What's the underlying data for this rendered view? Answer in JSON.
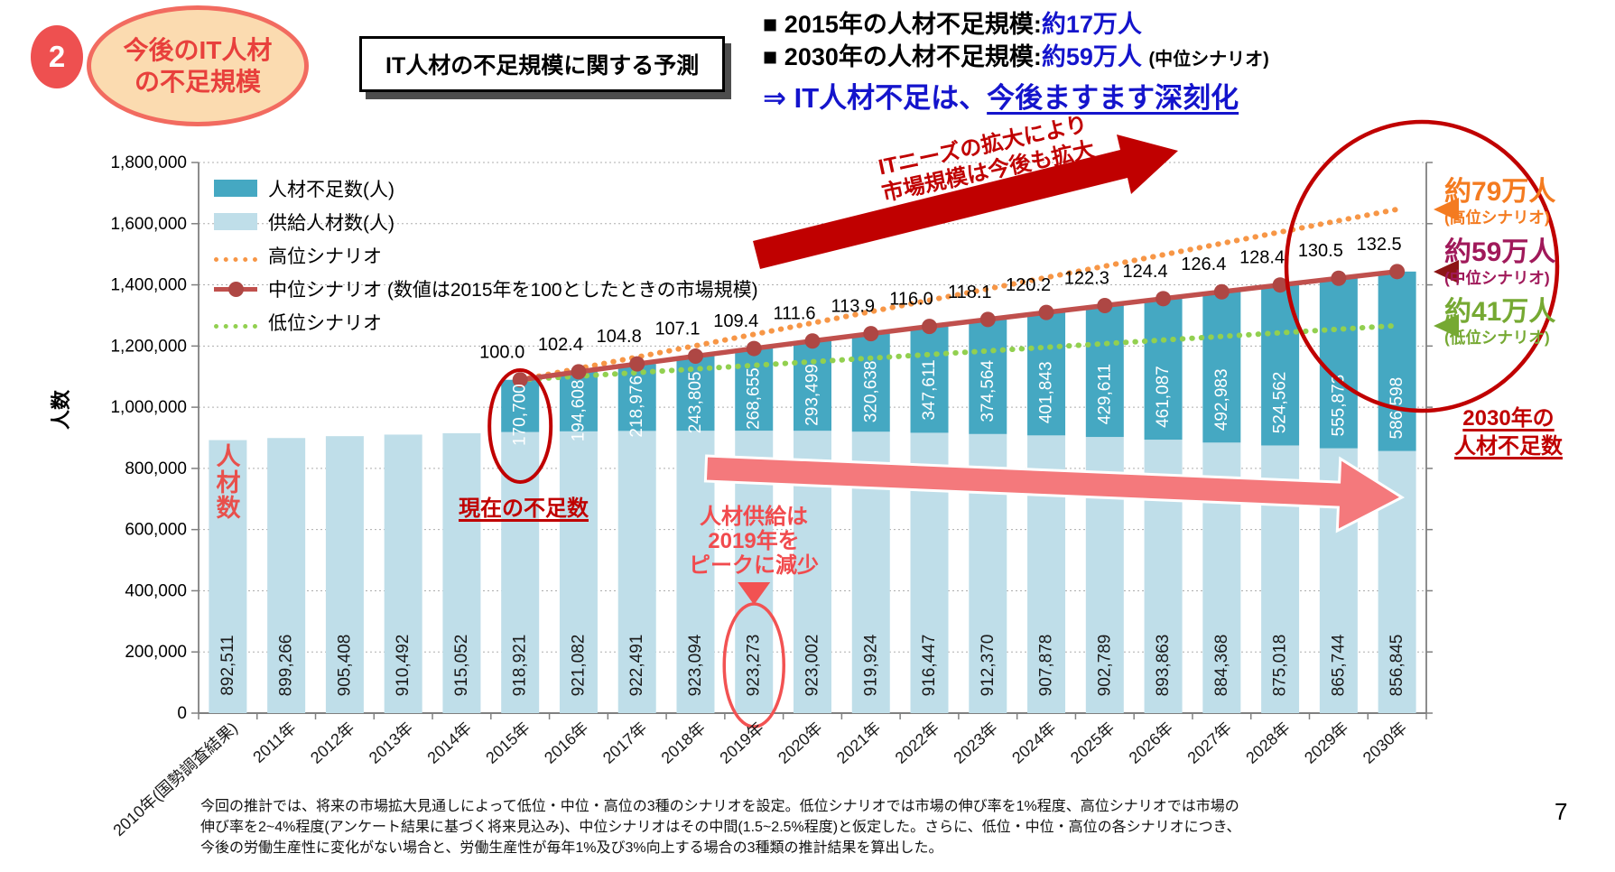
{
  "header": {
    "badge": "2",
    "bubble_title": "今後のIT人材\nの不足規模",
    "box_title": "IT人材の不足規模に関する予測",
    "bullet1_label": "■ 2015年の人材不足規模:",
    "bullet1_value": "約17万人",
    "bullet2_label": "■ 2030年の人材不足規模:",
    "bullet2_value": "約59万人",
    "bullet2_suffix": "(中位シナリオ)",
    "conclusion_prefix": "⇒ IT人材不足は、",
    "conclusion_underlined": "今後ますます深刻化"
  },
  "legend": {
    "items": [
      {
        "label": "人材不足数(人)",
        "swatch": "teal-bar"
      },
      {
        "label": "供給人材数(人)",
        "swatch": "lightblue-bar"
      },
      {
        "label": "高位シナリオ",
        "swatch": "orange-dotted-line"
      },
      {
        "label": "中位シナリオ (数値は2015年を100としたときの市場規模)",
        "swatch": "red-line-marker"
      },
      {
        "label": "低位シナリオ",
        "swatch": "green-dotted-line"
      }
    ]
  },
  "chart_data": {
    "type": "bar",
    "stacked": true,
    "ylabel": "人数",
    "ylim": [
      0,
      1800000
    ],
    "ytick_interval": 200000,
    "grid": true,
    "categories": [
      "2010年(国勢調査結果)",
      "2011年",
      "2012年",
      "2013年",
      "2014年",
      "2015年",
      "2016年",
      "2017年",
      "2018年",
      "2019年",
      "2020年",
      "2021年",
      "2022年",
      "2023年",
      "2024年",
      "2025年",
      "2026年",
      "2027年",
      "2028年",
      "2029年",
      "2030年"
    ],
    "series": [
      {
        "name": "供給人材数(人)",
        "type": "bar",
        "color": "#BFDEE9",
        "values": [
          892511,
          899266,
          905408,
          910492,
          915052,
          918921,
          921082,
          922491,
          923094,
          923273,
          923002,
          919924,
          916447,
          912370,
          907878,
          902789,
          893863,
          884368,
          875018,
          865744,
          856845
        ]
      },
      {
        "name": "人材不足数(人)",
        "type": "bar",
        "color": "#45A8C2",
        "start_index": 5,
        "values": [
          170700,
          194608,
          218976,
          243805,
          268655,
          293499,
          320638,
          347611,
          374564,
          401843,
          429611,
          461087,
          492983,
          524562,
          555873,
          586598
        ]
      },
      {
        "name": "中位シナリオ",
        "type": "line",
        "color": "#C0504D",
        "marker_color": "#AE4744",
        "index_labels": [
          "100.0",
          "102.4",
          "104.8",
          "107.1",
          "109.4",
          "111.6",
          "113.9",
          "116.0",
          "118.1",
          "120.2",
          "122.3",
          "124.4",
          "126.4",
          "128.4",
          "130.5",
          "132.5"
        ]
      },
      {
        "name": "高位シナリオ",
        "type": "dotted-line",
        "color": "#F79646",
        "shortage_2030": 790000
      },
      {
        "name": "低位シナリオ",
        "type": "dotted-line",
        "color": "#92D050",
        "shortage_2030": 410000
      }
    ]
  },
  "annotations": {
    "market_expand": "ITニーズの拡大により\n市場規模は今後も拡大",
    "current_shortage": "現在の不足数",
    "first_bar_label": "人\n材\n数",
    "supply_peak": "人材供給は\n2019年を\nピークに減少",
    "scenario_high_value": "約79万人",
    "scenario_high_label": "(高位シナリオ)",
    "scenario_mid_value": "約59万人",
    "scenario_mid_label": "(中位シナリオ)",
    "scenario_low_value": "約41万人",
    "scenario_low_label": "(低位シナリオ)",
    "shortage_2030_title": "2030年の\n人材不足数"
  },
  "colors": {
    "accent_dark_red": "#C00000",
    "pink_arrow": "#F4797C",
    "bright_red": "#F25252",
    "teal_bar": "#45A8C2",
    "light_blue_bar": "#BFDEE9",
    "mid_line": "#C0504D",
    "high_line": "#F79646",
    "low_line": "#92D050",
    "blue_text": "#1414CC"
  },
  "footer": {
    "note": "今回の推計では、将来の市場拡大見通しによって低位・中位・高位の3種のシナリオを設定。低位シナリオでは市場の伸び率を1%程度、高位シナリオでは市場の伸び率を2~4%程度(アンケート結果に基づく将来見込み)、中位シナリオはその中間(1.5~2.5%程度)と仮定した。さらに、低位・中位・高位の各シナリオにつき、今後の労働生産性に変化がない場合と、労働生産性が毎年1%及び3%向上する場合の3種類の推計結果を算出した。",
    "page_number": "7"
  }
}
